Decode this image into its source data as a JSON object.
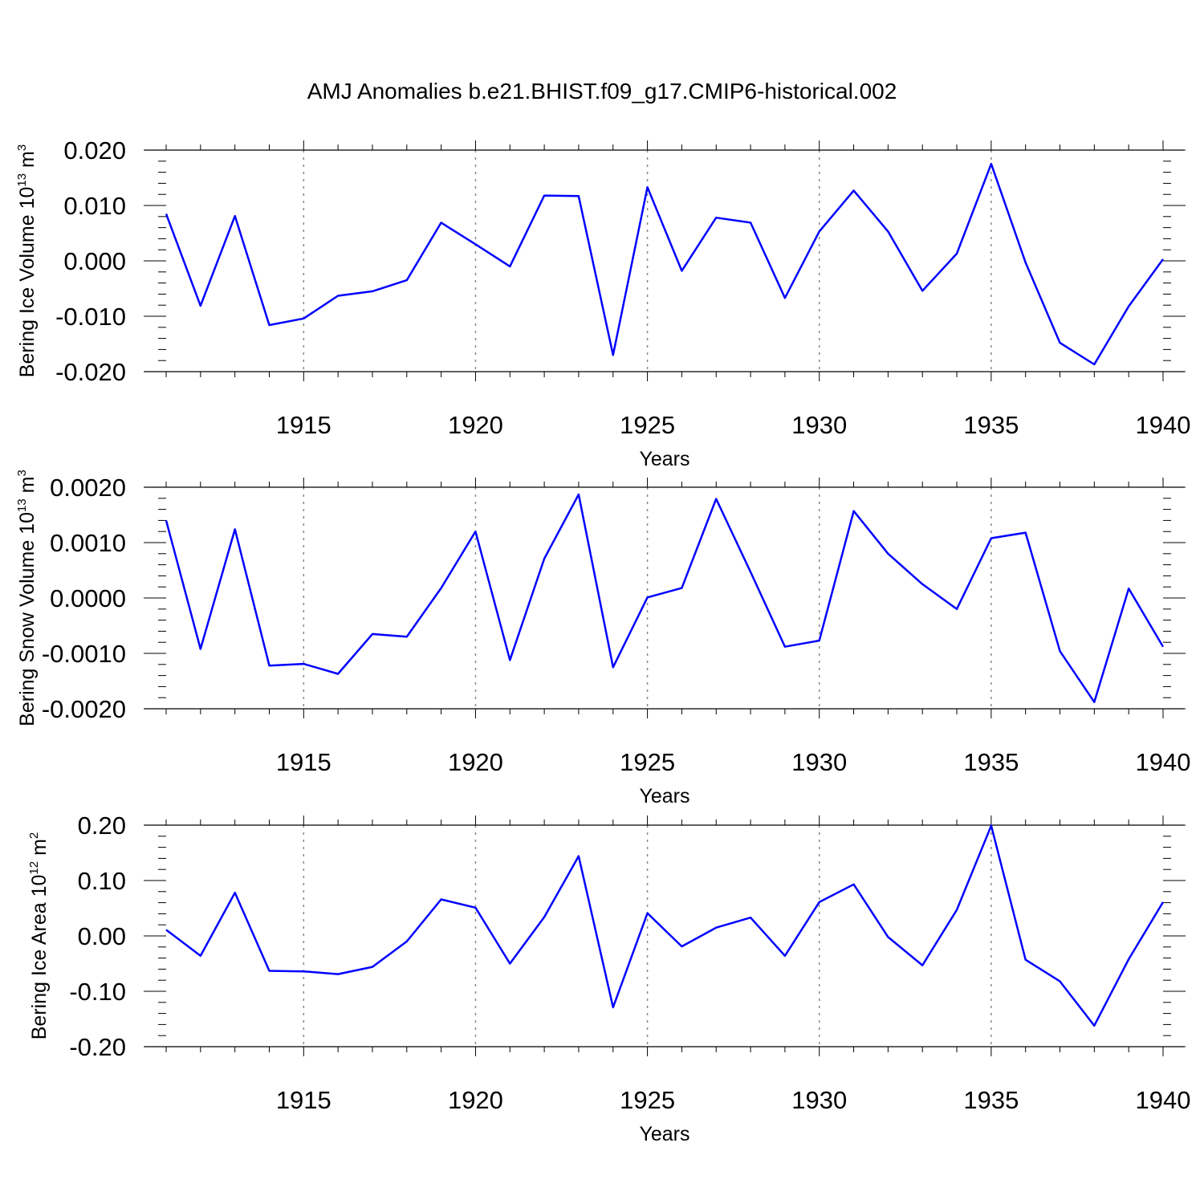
{
  "figure": {
    "title": "AMJ Anomalies b.e21.BHIST.f09_g17.CMIP6-historical.002",
    "line_color": "#0000ff",
    "grid_color": "#888888"
  },
  "chart_data": [
    {
      "type": "line",
      "title": "",
      "xlabel": "Years",
      "ylabel_main": "Bering Ice Volume 10",
      "ylabel_exp": "13",
      "ylabel_unit": " m",
      "ylabel_unit_exp": "3",
      "xlim": [
        1911,
        1940
      ],
      "ylim": [
        -0.02,
        0.02
      ],
      "xticks": [
        1915,
        1920,
        1925,
        1930,
        1935,
        1940
      ],
      "yticks": [
        -0.02,
        -0.01,
        0.0,
        0.01,
        0.02
      ],
      "yticklabels": [
        "-0.020",
        "-0.010",
        "0.000",
        "0.010",
        "0.020"
      ],
      "grid": "vertical dotted at major x ticks",
      "series": [
        {
          "name": "Bering Ice Volume",
          "x": [
            1911,
            1912,
            1913,
            1914,
            1915,
            1916,
            1917,
            1918,
            1919,
            1920,
            1921,
            1922,
            1923,
            1924,
            1925,
            1926,
            1927,
            1928,
            1929,
            1930,
            1931,
            1932,
            1933,
            1934,
            1935,
            1936,
            1937,
            1938,
            1939,
            1940
          ],
          "values": [
            0.0085,
            -0.0081,
            0.0081,
            -0.0116,
            -0.0104,
            -0.0063,
            -0.0055,
            -0.0035,
            0.0069,
            0.003,
            -0.001,
            0.0118,
            0.0117,
            -0.017,
            0.0133,
            -0.0018,
            0.0078,
            0.0069,
            -0.0067,
            0.0053,
            0.0127,
            0.0053,
            -0.0054,
            0.0013,
            0.0175,
            -0.0003,
            -0.0148,
            -0.0187,
            -0.0082,
            0.0003
          ]
        }
      ]
    },
    {
      "type": "line",
      "title": "",
      "xlabel": "Years",
      "ylabel_main": "Bering Snow Volume 10",
      "ylabel_exp": "13",
      "ylabel_unit": " m",
      "ylabel_unit_exp": "3",
      "xlim": [
        1911,
        1940
      ],
      "ylim": [
        -0.002,
        0.002
      ],
      "xticks": [
        1915,
        1920,
        1925,
        1930,
        1935,
        1940
      ],
      "yticks": [
        -0.002,
        -0.001,
        0.0,
        0.001,
        0.002
      ],
      "yticklabels": [
        "-0.0020",
        "-0.0010",
        "0.0000",
        "0.0010",
        "0.0020"
      ],
      "grid": "vertical dotted at major x ticks",
      "series": [
        {
          "name": "Bering Snow Volume",
          "x": [
            1911,
            1912,
            1913,
            1914,
            1915,
            1916,
            1917,
            1918,
            1919,
            1920,
            1921,
            1922,
            1923,
            1924,
            1925,
            1926,
            1927,
            1928,
            1929,
            1930,
            1931,
            1932,
            1933,
            1934,
            1935,
            1936,
            1937,
            1938,
            1939,
            1940
          ],
          "values": [
            0.0014,
            -0.00092,
            0.00124,
            -0.00122,
            -0.00119,
            -0.00137,
            -0.00065,
            -0.0007,
            0.00018,
            0.0012,
            -0.00112,
            0.00071,
            0.00187,
            -0.00125,
            1e-05,
            0.00018,
            0.00179,
            0.00047,
            -0.00088,
            -0.00077,
            0.00157,
            0.0008,
            0.00025,
            -0.0002,
            0.00108,
            0.00118,
            -0.00096,
            -0.00188,
            0.00017,
            -0.00088
          ]
        }
      ]
    },
    {
      "type": "line",
      "title": "",
      "xlabel": "Years",
      "ylabel_main": "Bering Ice Area 10",
      "ylabel_exp": "12",
      "ylabel_unit": " m",
      "ylabel_unit_exp": "2",
      "xlim": [
        1911,
        1940
      ],
      "ylim": [
        -0.2,
        0.2
      ],
      "xticks": [
        1915,
        1920,
        1925,
        1930,
        1935,
        1940
      ],
      "yticks": [
        -0.2,
        -0.1,
        0.0,
        0.1,
        0.2
      ],
      "yticklabels": [
        "-0.20",
        "-0.10",
        "0.00",
        "0.10",
        "0.20"
      ],
      "grid": "vertical dotted at major x ticks",
      "series": [
        {
          "name": "Bering Ice Area",
          "x": [
            1911,
            1912,
            1913,
            1914,
            1915,
            1916,
            1917,
            1918,
            1919,
            1920,
            1921,
            1922,
            1923,
            1924,
            1925,
            1926,
            1927,
            1928,
            1929,
            1930,
            1931,
            1932,
            1933,
            1934,
            1935,
            1936,
            1937,
            1938,
            1939,
            1940
          ],
          "values": [
            0.011,
            -0.036,
            0.078,
            -0.063,
            -0.064,
            -0.069,
            -0.056,
            -0.01,
            0.066,
            0.051,
            -0.05,
            0.034,
            0.144,
            -0.129,
            0.041,
            -0.019,
            0.015,
            0.033,
            -0.036,
            0.061,
            0.093,
            -0.002,
            -0.053,
            0.047,
            0.199,
            -0.043,
            -0.082,
            -0.162,
            -0.042,
            0.061
          ]
        }
      ]
    }
  ]
}
